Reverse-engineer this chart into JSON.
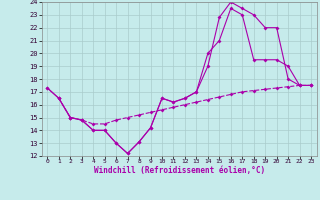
{
  "xlabel": "Windchill (Refroidissement éolien,°C)",
  "xlim": [
    -0.5,
    23.5
  ],
  "ylim": [
    12,
    24
  ],
  "bg_color": "#c6ebeb",
  "line_color": "#aa00aa",
  "grid_color": "#aacccc",
  "line1_x": [
    0,
    1,
    2,
    3,
    4,
    5,
    6,
    7,
    8,
    9,
    10,
    11,
    12,
    13,
    14,
    15,
    16,
    17,
    18,
    19,
    20,
    21,
    22,
    23
  ],
  "line1_y": [
    17.3,
    16.5,
    15.0,
    14.8,
    14.0,
    14.0,
    13.0,
    12.2,
    13.1,
    14.2,
    16.5,
    16.2,
    16.5,
    17.0,
    19.0,
    22.8,
    24.0,
    23.5,
    23.0,
    22.0,
    22.0,
    18.0,
    17.5,
    17.5
  ],
  "line2_x": [
    0,
    1,
    2,
    3,
    4,
    5,
    6,
    7,
    8,
    9,
    10,
    11,
    12,
    13,
    14,
    15,
    16,
    17,
    18,
    19,
    20,
    21,
    22,
    23
  ],
  "line2_y": [
    17.3,
    16.5,
    15.0,
    14.8,
    14.0,
    14.0,
    13.0,
    12.2,
    13.1,
    14.2,
    16.5,
    16.2,
    16.5,
    17.0,
    20.0,
    21.0,
    23.5,
    23.0,
    19.5,
    19.5,
    19.5,
    19.0,
    17.5,
    17.5
  ],
  "line3_x": [
    1,
    2,
    3,
    4,
    5,
    6,
    7,
    8,
    9,
    10,
    11,
    12,
    13,
    14,
    15,
    16,
    17,
    18,
    19,
    20,
    21,
    22,
    23
  ],
  "line3_y": [
    16.5,
    15.0,
    14.8,
    14.5,
    14.5,
    14.8,
    15.0,
    15.2,
    15.4,
    15.6,
    15.8,
    16.0,
    16.2,
    16.4,
    16.6,
    16.8,
    17.0,
    17.1,
    17.2,
    17.3,
    17.4,
    17.5,
    17.5
  ]
}
